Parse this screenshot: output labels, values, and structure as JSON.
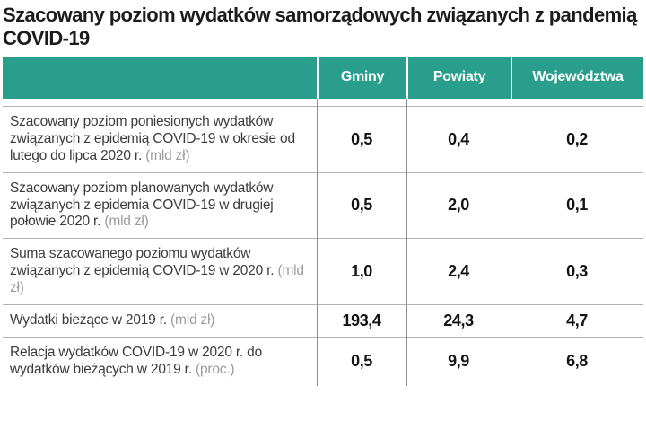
{
  "title": "Szacowany poziom wydatków samorządowych związanych z pandemią COVID-19",
  "colors": {
    "accent_teal": "#2a9e8c",
    "header_text": "#ffffff",
    "row_separator": "#b4b4b4",
    "column_divider": "#8f8f8f",
    "unit_text": "#9b9b9b"
  },
  "chart_data": {
    "type": "table",
    "title": "Szacowany poziom wydatków samorządowych związanych z pandemią COVID-19",
    "columns": [
      "Gminy",
      "Powiaty",
      "Województwa"
    ],
    "rows": [
      {
        "label": "Szacowany poziom poniesionych wydatków związanych z epidemią COVID-19 w okresie od lutego do lipca 2020 r.",
        "unit": "(mld zł)",
        "values": [
          "0,5",
          "0,4",
          "0,2"
        ]
      },
      {
        "label": "Szacowany poziom planowanych wydatków związanych z epidemia COVID-19 w drugiej połowie 2020 r.",
        "unit": "(mld zł)",
        "values": [
          "0,5",
          "2,0",
          "0,1"
        ]
      },
      {
        "label": "Suma szacowanego poziomu wydatków związanych z epidemią COVID-19 w 2020 r.",
        "unit": "(mld zł)",
        "values": [
          "1,0",
          "2,4",
          "0,3"
        ]
      },
      {
        "label": "Wydatki bieżące w 2019 r.",
        "unit": "(mld zł)",
        "values": [
          "193,4",
          "24,3",
          "4,7"
        ]
      },
      {
        "label": "Relacja wydatków COVID-19 w 2020 r. do wydatków bieżących w 2019 r.",
        "unit": "(proc.)",
        "values": [
          "0,5",
          "9,9",
          "6,8"
        ]
      }
    ]
  }
}
